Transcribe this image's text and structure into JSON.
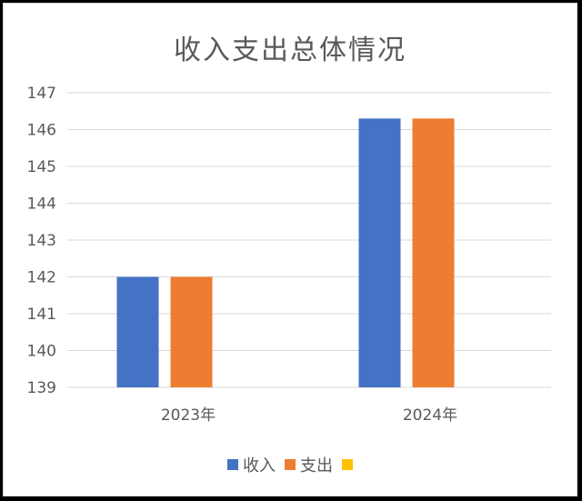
{
  "chart_data": {
    "type": "bar",
    "title": "收入支出总体情况",
    "categories": [
      "2023年",
      "2024年"
    ],
    "series": [
      {
        "name": "收入",
        "values": [
          142,
          146.3
        ],
        "color": "#4472C4"
      },
      {
        "name": "支出",
        "values": [
          142,
          146.3
        ],
        "color": "#ED7D31"
      },
      {
        "name": "",
        "values": [
          null,
          null
        ],
        "color": "#FFC000"
      }
    ],
    "ylim": [
      139,
      147
    ],
    "yticks": [
      "139",
      "140",
      "141",
      "142",
      "143",
      "144",
      "145",
      "146",
      "147"
    ],
    "grid": true,
    "legend": "bottom"
  }
}
